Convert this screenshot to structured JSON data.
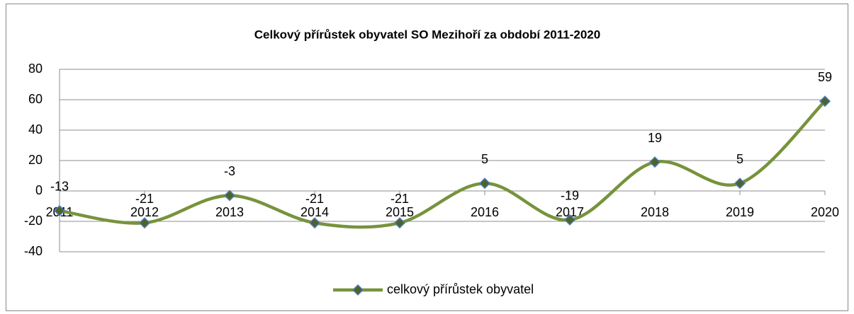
{
  "chart_data": {
    "type": "line",
    "title": "Celkový přírůstek obyvatel SO Mezihoří za období 2011-2020",
    "categories": [
      "2011",
      "2012",
      "2013",
      "2014",
      "2015",
      "2016",
      "2017",
      "2018",
      "2019",
      "2020"
    ],
    "series": [
      {
        "name": "celkový přírůstek obyvatel",
        "color": "#77933c",
        "values": [
          -13,
          -21,
          -3,
          -21,
          -21,
          5,
          -19,
          19,
          5,
          59
        ]
      }
    ],
    "ylim": [
      -40,
      80
    ],
    "yticks": [
      -40,
      -20,
      0,
      20,
      40,
      60,
      80
    ],
    "grid": true,
    "smooth": true,
    "data_labels": true,
    "legend": "bottom"
  }
}
